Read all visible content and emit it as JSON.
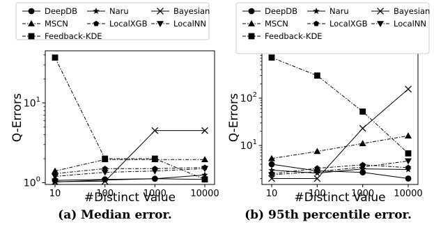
{
  "chart_data": [
    {
      "type": "line",
      "caption": "(a) Median error.",
      "xlabel": "#Distinct Value",
      "ylabel": "Q-Errors",
      "xscale": "log",
      "yscale": "log",
      "x": [
        10,
        100,
        1000,
        10000
      ],
      "x_tick_labels": [
        "10",
        "100",
        "1000",
        "10000"
      ],
      "ylim": [
        0.95,
        45
      ],
      "y_ticks": [
        {
          "value": 1,
          "base": "10",
          "exp": "0"
        },
        {
          "value": 10,
          "base": "10",
          "exp": "1"
        }
      ],
      "legend_position": "top",
      "legend_columns": 3,
      "series": [
        {
          "name": "DeepDB",
          "marker": "circle",
          "dash": "solid",
          "values": [
            1.07,
            1.1,
            1.12,
            1.1
          ]
        },
        {
          "name": "Naru",
          "marker": "star",
          "dash": "solid",
          "values": [
            1.02,
            1.08,
            1.12,
            1.25
          ]
        },
        {
          "name": "Bayesian",
          "marker": "x",
          "dash": "solid",
          "values": [
            1.03,
            1.04,
            4.5,
            4.5
          ]
        },
        {
          "name": "MSCN",
          "marker": "triangle-up",
          "dash": "dashdot",
          "values": [
            1.4,
            1.95,
            1.95,
            1.95
          ]
        },
        {
          "name": "LocalXGB",
          "marker": "pentagon",
          "dash": "dashdot",
          "values": [
            1.3,
            1.5,
            1.5,
            1.55
          ]
        },
        {
          "name": "LocalNN",
          "marker": "triangle-down",
          "dash": "dashdot",
          "values": [
            1.2,
            1.35,
            1.4,
            1.5
          ]
        },
        {
          "name": "Feedback-KDE",
          "marker": "square",
          "dash": "dashdot",
          "values": [
            37,
            2,
            2,
            1.1
          ]
        }
      ]
    },
    {
      "type": "line",
      "caption": "(b) 95th percentile error.",
      "xlabel": "#Distinct Value",
      "ylabel": "Q-Errors",
      "xscale": "log",
      "yscale": "log",
      "x": [
        10,
        100,
        1000,
        10000
      ],
      "x_tick_labels": [
        "10",
        "100",
        "1000",
        "10000"
      ],
      "ylim": [
        1.5,
        1000
      ],
      "y_ticks": [
        {
          "value": 10,
          "base": "10",
          "exp": "1"
        },
        {
          "value": 100,
          "base": "10",
          "exp": "2"
        }
      ],
      "legend_position": "top",
      "legend_columns": 3,
      "series": [
        {
          "name": "DeepDB",
          "marker": "circle",
          "dash": "solid",
          "values": [
            4,
            2.9,
            2.7,
            2
          ]
        },
        {
          "name": "Naru",
          "marker": "star",
          "dash": "solid",
          "values": [
            3,
            2.6,
            3.2,
            3.1
          ]
        },
        {
          "name": "Bayesian",
          "marker": "x",
          "dash": "solid",
          "values": [
            2,
            2,
            23,
            155
          ]
        },
        {
          "name": "MSCN",
          "marker": "triangle-up",
          "dash": "dashdot",
          "values": [
            5.3,
            7.5,
            11,
            16
          ]
        },
        {
          "name": "LocalXGB",
          "marker": "pentagon",
          "dash": "dashdot",
          "values": [
            2.5,
            3.3,
            3.9,
            3.4
          ]
        },
        {
          "name": "LocalNN",
          "marker": "triangle-down",
          "dash": "dashdot",
          "values": [
            2.4,
            2.8,
            3.5,
            4.7
          ]
        },
        {
          "name": "Feedback-KDE",
          "marker": "square",
          "dash": "dashdot",
          "values": [
            720,
            300,
            52,
            6.8
          ]
        }
      ]
    }
  ]
}
